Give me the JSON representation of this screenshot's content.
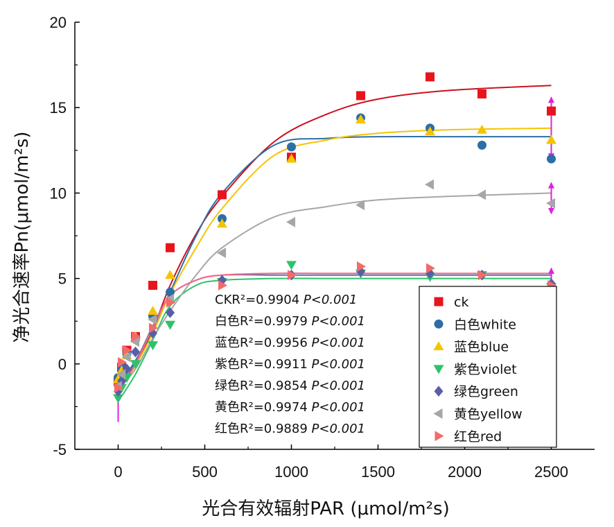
{
  "chart_data": {
    "type": "scatter",
    "xlabel": "光合有效辐射PAR (μmol/m²s)",
    "ylabel": "净光合速率Pn(μmol/m²s)",
    "xlim": [
      -250,
      2750
    ],
    "ylim": [
      -5,
      20
    ],
    "xticks": [
      0,
      500,
      1000,
      1500,
      2000,
      2500
    ],
    "yticks": [
      -5,
      0,
      5,
      10,
      15,
      20
    ],
    "legend_position": "bottom-right",
    "grid": false,
    "x": [
      0,
      20,
      50,
      100,
      200,
      300,
      600,
      1000,
      1400,
      1800,
      2100,
      2500
    ],
    "series": [
      {
        "name": "ck",
        "color": "#e8141c",
        "marker": "square",
        "values": [
          -1.0,
          -0.2,
          0.8,
          1.6,
          4.6,
          6.8,
          9.9,
          12.1,
          15.7,
          16.8,
          15.8,
          14.8
        ],
        "fit": [
          -1.7,
          0.0,
          2.0,
          4.6,
          7.6,
          9.8,
          13.0,
          14.6,
          15.5,
          16.0,
          16.3
        ],
        "error_band": null
      },
      {
        "name": "白色white",
        "color": "#2e6ea6",
        "marker": "circle",
        "values": [
          -0.8,
          -0.2,
          0.6,
          1.5,
          2.8,
          4.2,
          8.5,
          12.7,
          14.4,
          13.8,
          12.8,
          12.0
        ],
        "fit": [
          -1.3,
          0.2,
          2.0,
          4.2,
          7.5,
          10.0,
          12.8,
          13.2,
          13.3,
          13.3,
          13.3
        ],
        "error_band": null
      },
      {
        "name": "蓝色blue",
        "color": "#f5c400",
        "marker": "triangle-up",
        "values": [
          -0.9,
          -0.4,
          0.5,
          1.6,
          3.1,
          5.2,
          8.2,
          12.0,
          14.3,
          13.6,
          13.7,
          13.1
        ],
        "fit": [
          -1.6,
          -0.1,
          1.8,
          4.1,
          6.8,
          9.1,
          12.2,
          13.1,
          13.5,
          13.7,
          13.8
        ],
        "error_band": null
      },
      {
        "name": "紫色violet",
        "color": "#2ec26a",
        "marker": "triangle-down",
        "values": [
          -2.0,
          -1.4,
          -0.8,
          0.0,
          1.1,
          2.3,
          4.8,
          5.8,
          5.3,
          5.1,
          5.2,
          4.5
        ],
        "fit": [
          -2.2,
          -0.6,
          1.4,
          3.4,
          4.6,
          4.9,
          5.0,
          5.0,
          5.0,
          5.0,
          5.0
        ],
        "error_band": null
      },
      {
        "name": "绿色green",
        "color": "#5b5ea6",
        "marker": "diamond",
        "values": [
          -1.6,
          -1.0,
          -0.3,
          0.7,
          1.8,
          3.0,
          4.9,
          5.2,
          5.4,
          5.3,
          5.2,
          4.7
        ],
        "fit": [
          -1.6,
          0.1,
          2.2,
          4.0,
          4.9,
          5.2,
          5.2,
          5.2,
          5.2,
          5.2,
          5.2
        ],
        "error_band": null
      },
      {
        "name": "黄色yellow",
        "color": "#a6a6a6",
        "marker": "triangle-left",
        "values": [
          -1.3,
          -0.6,
          0.4,
          1.3,
          2.6,
          3.8,
          6.5,
          8.3,
          9.3,
          10.5,
          9.9,
          9.4
        ],
        "fit": [
          -1.5,
          -0.3,
          1.5,
          3.1,
          5.2,
          6.8,
          8.6,
          9.2,
          9.6,
          9.8,
          10.0
        ],
        "error_band": [
          8.8,
          10.6
        ]
      },
      {
        "name": "红色red",
        "color": "#f26b6b",
        "marker": "triangle-right",
        "values": [
          -1.4,
          0.1,
          0.8,
          1.6,
          2.1,
          3.6,
          4.6,
          5.2,
          5.7,
          5.6,
          5.2,
          4.6
        ],
        "fit": [
          -1.7,
          0.0,
          2.1,
          4.0,
          4.9,
          5.2,
          5.3,
          5.3,
          5.3,
          5.3,
          5.3
        ],
        "error_band": [
          3.6,
          5.6
        ]
      }
    ],
    "fit_x": [
      0,
      100,
      200,
      300,
      450,
      600,
      900,
      1200,
      1500,
      1900,
      2500
    ],
    "violet_error_band_2500": [
      12.0,
      15.6
    ],
    "annotations": [
      {
        "label": "CK",
        "r2": "R²=0.9904",
        "p": "P<0.001"
      },
      {
        "label": "白色",
        "r2": "R²=0.9979",
        "p": "P<0.001"
      },
      {
        "label": "蓝色",
        "r2": "R²=0.9956",
        "p": "P<0.001"
      },
      {
        "label": "紫色",
        "r2": "R²=0.9911",
        "p": "P<0.001"
      },
      {
        "label": "绿色",
        "r2": "R²=0.9854",
        "p": "P<0.001"
      },
      {
        "label": "黄色",
        "r2": "R²=0.9974",
        "p": "P<0.001"
      },
      {
        "label": "红色",
        "r2": "R²=0.9889",
        "p": "P<0.001"
      }
    ]
  }
}
